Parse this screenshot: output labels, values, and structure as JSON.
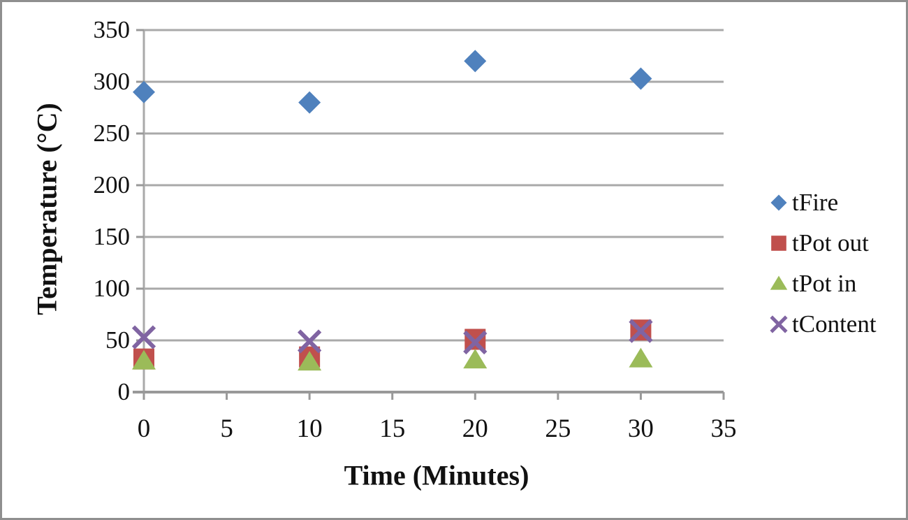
{
  "chart_data": {
    "type": "scatter",
    "title": "",
    "xlabel": "Time (Minutes)",
    "ylabel": "Temperature (°C)",
    "xlim": [
      0,
      35
    ],
    "ylim": [
      0,
      350
    ],
    "x_ticks": [
      0,
      5,
      10,
      15,
      20,
      25,
      30,
      35
    ],
    "y_ticks": [
      0,
      50,
      100,
      150,
      200,
      250,
      300,
      350
    ],
    "grid": "horizontal-only",
    "legend_position": "right",
    "x": [
      0,
      10,
      20,
      30
    ],
    "series": [
      {
        "name": "tFire",
        "marker": "diamond",
        "color": "#4F81BD",
        "values": [
          290,
          280,
          320,
          303
        ]
      },
      {
        "name": "tPot out",
        "marker": "square",
        "color": "#C0504D",
        "values": [
          32,
          34,
          51,
          60
        ]
      },
      {
        "name": "tPot in",
        "marker": "triangle",
        "color": "#9BBB59",
        "values": [
          30,
          29,
          31,
          32
        ]
      },
      {
        "name": "tContent",
        "marker": "x",
        "color": "#8064A2",
        "values": [
          53,
          49,
          48,
          59
        ]
      }
    ]
  },
  "colors": {
    "gridline": "#A9A9A9",
    "axis_line": "#999999",
    "frame_border": "#8F8F8F",
    "text": "#111111"
  }
}
